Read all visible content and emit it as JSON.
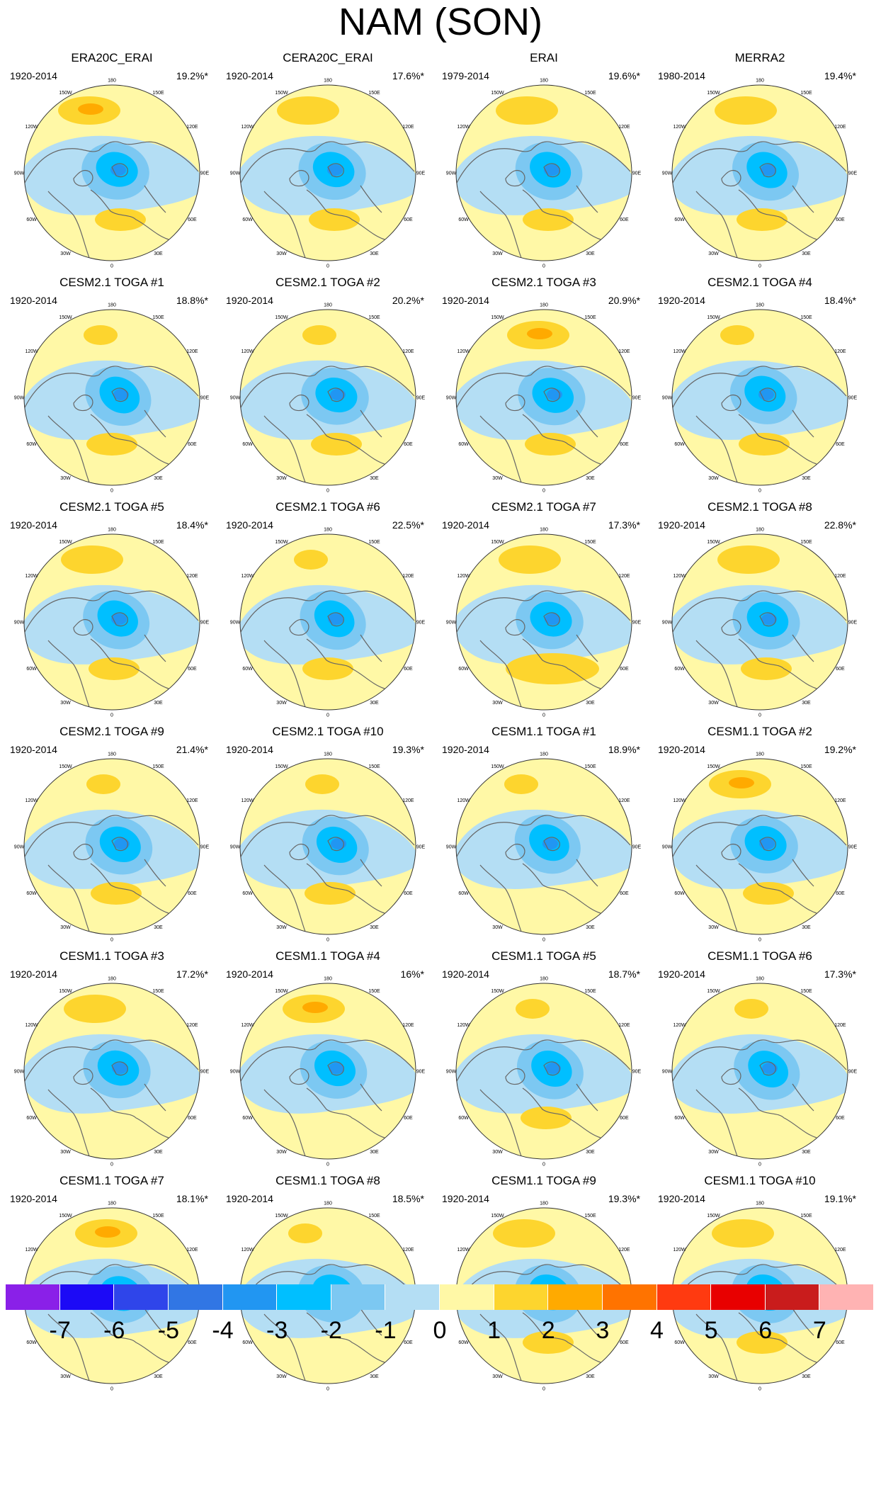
{
  "figure": {
    "title": "NAM (SON)",
    "panels": [
      {
        "title": "ERA20C_ERAI",
        "period": "1920-2014",
        "variance": "19.2%*"
      },
      {
        "title": "CERA20C_ERAI",
        "period": "1920-2014",
        "variance": "17.6%*"
      },
      {
        "title": "ERAI",
        "period": "1979-2014",
        "variance": "19.6%*"
      },
      {
        "title": "MERRA2",
        "period": "1980-2014",
        "variance": "19.4%*"
      },
      {
        "title": "CESM2.1 TOGA #1",
        "period": "1920-2014",
        "variance": "18.8%*"
      },
      {
        "title": "CESM2.1 TOGA #2",
        "period": "1920-2014",
        "variance": "20.2%*"
      },
      {
        "title": "CESM2.1 TOGA #3",
        "period": "1920-2014",
        "variance": "20.9%*"
      },
      {
        "title": "CESM2.1 TOGA #4",
        "period": "1920-2014",
        "variance": "18.4%*"
      },
      {
        "title": "CESM2.1 TOGA #5",
        "period": "1920-2014",
        "variance": "18.4%*"
      },
      {
        "title": "CESM2.1 TOGA #6",
        "period": "1920-2014",
        "variance": "22.5%*"
      },
      {
        "title": "CESM2.1 TOGA #7",
        "period": "1920-2014",
        "variance": "17.3%*"
      },
      {
        "title": "CESM2.1 TOGA #8",
        "period": "1920-2014",
        "variance": "22.8%*"
      },
      {
        "title": "CESM2.1 TOGA #9",
        "period": "1920-2014",
        "variance": "21.4%*"
      },
      {
        "title": "CESM2.1 TOGA #10",
        "period": "1920-2014",
        "variance": "19.3%*"
      },
      {
        "title": "CESM1.1 TOGA #1",
        "period": "1920-2014",
        "variance": "18.9%*"
      },
      {
        "title": "CESM1.1 TOGA #2",
        "period": "1920-2014",
        "variance": "19.2%*"
      },
      {
        "title": "CESM1.1 TOGA #3",
        "period": "1920-2014",
        "variance": "17.2%*"
      },
      {
        "title": "CESM1.1 TOGA #4",
        "period": "1920-2014",
        "variance": "16%*"
      },
      {
        "title": "CESM1.1 TOGA #5",
        "period": "1920-2014",
        "variance": "18.7%*"
      },
      {
        "title": "CESM1.1 TOGA #6",
        "period": "1920-2014",
        "variance": "17.3%*"
      },
      {
        "title": "CESM1.1 TOGA #7",
        "period": "1920-2014",
        "variance": "18.1%*"
      },
      {
        "title": "CESM1.1 TOGA #8",
        "period": "1920-2014",
        "variance": "18.5%*"
      },
      {
        "title": "CESM1.1 TOGA #9",
        "period": "1920-2014",
        "variance": "19.3%*"
      },
      {
        "title": "CESM1.1 TOGA #10",
        "period": "1920-2014",
        "variance": "19.1%*"
      }
    ],
    "longitude_labels": [
      "180",
      "150E",
      "120E",
      "90E",
      "60E",
      "30E",
      "0",
      "30W",
      "60W",
      "90W",
      "120W",
      "150W"
    ],
    "colorbar": {
      "labels": [
        "-7",
        "-6",
        "-5",
        "-4",
        "-3",
        "-2",
        "-1",
        "0",
        "1",
        "2",
        "3",
        "4",
        "5",
        "6",
        "7"
      ],
      "colors": [
        "#8a20e8",
        "#1c0af6",
        "#2f45ea",
        "#3176e4",
        "#2196f2",
        "#00bfff",
        "#7cc8f2",
        "#b4def4",
        "#fff8a6",
        "#fdd52e",
        "#ffaa00",
        "#ff7300",
        "#ff3a10",
        "#e80000",
        "#c91c1c",
        "#ffb3b3"
      ]
    },
    "map_colors": {
      "neg1": "#b4def4",
      "neg2": "#7cc8f2",
      "neg3": "#00bfff",
      "neg4": "#2196f2",
      "pos0": "#fff8a6",
      "pos1": "#fdd52e",
      "pos2": "#ffaa00",
      "coast": "#666666"
    }
  }
}
